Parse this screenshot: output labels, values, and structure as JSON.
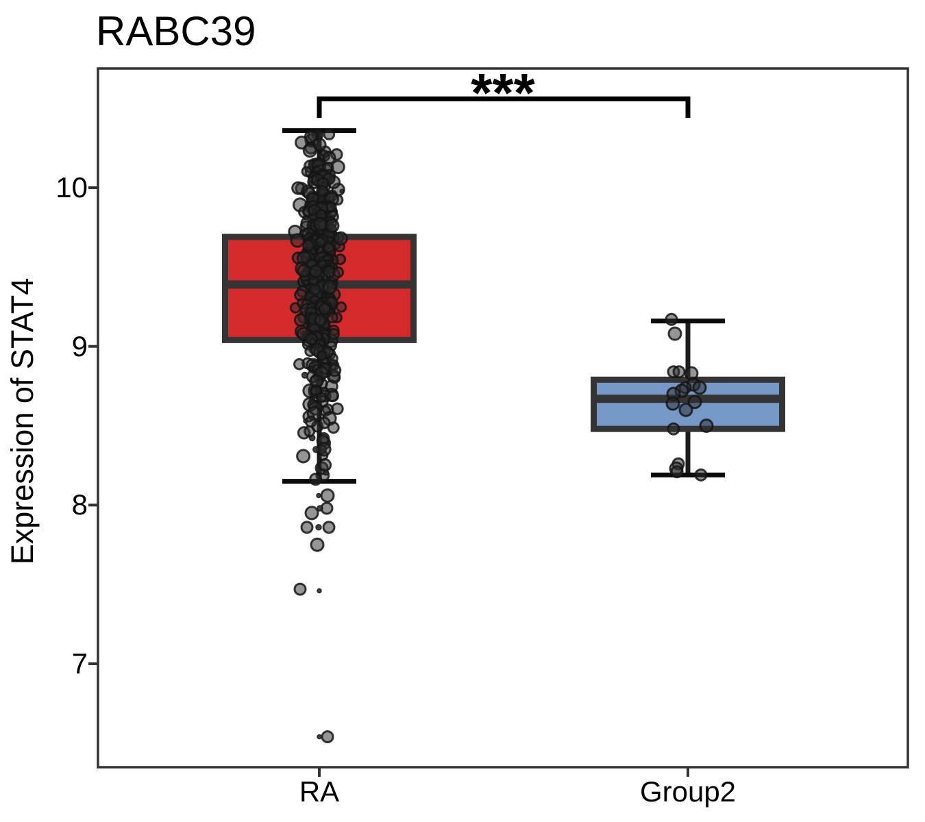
{
  "chart_data": {
    "type": "box",
    "title": "RABC39",
    "ylabel": "Expression of STAT4",
    "xlabel": "",
    "categories": [
      "RA",
      "Group2"
    ],
    "legend": "none",
    "grid": false,
    "y_axis": {
      "visible_range": [
        6.34,
        10.75
      ],
      "ticks": [
        {
          "value": 10,
          "label": "10"
        },
        {
          "value": 9,
          "label": "9"
        },
        {
          "value": 8,
          "label": "8"
        },
        {
          "value": 7,
          "label": "7"
        }
      ]
    },
    "significance": {
      "label": "***",
      "between": [
        "RA",
        "Group2"
      ],
      "bracket_top_value": 10.56,
      "bracket_drop_value": 10.44
    },
    "colors": {
      "box_border": "#343434",
      "median_line": "#343434",
      "whisker": "#1c1c1c",
      "whisker_cap": "#0a0a0a",
      "bracket": "#000000",
      "point_fill": "#2b2b2b",
      "point_stroke": "#151515",
      "axis": "#333333"
    },
    "groups": [
      {
        "label": "RA",
        "fill_color": "#D32B2B",
        "box_stats": {
          "whisker_low": 8.15,
          "q1": 9.04,
          "median": 9.39,
          "q3": 9.69,
          "whisker_high": 10.36
        },
        "n_points_estimated": 456,
        "jitter_density_bands": [
          [
            10.28,
            10.37,
            6
          ],
          [
            10.18,
            10.28,
            9
          ],
          [
            10.08,
            10.18,
            14
          ],
          [
            9.98,
            10.08,
            20
          ],
          [
            9.88,
            9.98,
            26
          ],
          [
            9.78,
            9.88,
            30
          ],
          [
            9.68,
            9.78,
            33
          ],
          [
            9.58,
            9.68,
            36
          ],
          [
            9.48,
            9.58,
            37
          ],
          [
            9.38,
            9.48,
            36
          ],
          [
            9.28,
            9.38,
            34
          ],
          [
            9.18,
            9.28,
            31
          ],
          [
            9.08,
            9.18,
            28
          ],
          [
            8.98,
            9.08,
            24
          ],
          [
            8.88,
            8.98,
            19
          ],
          [
            8.78,
            8.88,
            15
          ],
          [
            8.68,
            8.78,
            12
          ],
          [
            8.58,
            8.68,
            9
          ],
          [
            8.48,
            8.58,
            8
          ],
          [
            8.38,
            8.48,
            6
          ],
          [
            8.28,
            8.38,
            5
          ],
          [
            8.15,
            8.28,
            5
          ]
        ],
        "outlier_points": [
          [
            8.06,
            -1,
            3
          ],
          [
            8.06,
            12,
            9
          ],
          [
            7.98,
            11,
            8
          ],
          [
            7.98,
            1,
            4
          ],
          [
            7.95,
            -11,
            9
          ],
          [
            7.86,
            -1,
            4
          ],
          [
            7.86,
            14,
            8
          ],
          [
            7.86,
            -18,
            8
          ],
          [
            7.75,
            -3,
            9
          ],
          [
            7.47,
            -28,
            8
          ],
          [
            7.46,
            0,
            3
          ],
          [
            6.54,
            0,
            3
          ],
          [
            6.54,
            12,
            8
          ]
        ]
      },
      {
        "label": "Group2",
        "fill_color": "#7598C6",
        "box_stats": {
          "whisker_low": 8.19,
          "q1": 8.48,
          "median": 8.67,
          "q3": 8.79,
          "whisker_high": 9.16
        },
        "points": [
          [
            9.17,
            -24,
            8
          ],
          [
            9.08,
            -19,
            9
          ],
          [
            8.84,
            -21,
            8
          ],
          [
            8.84,
            -13,
            8
          ],
          [
            8.83,
            5,
            9
          ],
          [
            8.76,
            8,
            9
          ],
          [
            8.74,
            17,
            9
          ],
          [
            8.74,
            -4,
            8
          ],
          [
            8.72,
            -9,
            9
          ],
          [
            8.7,
            -21,
            9
          ],
          [
            8.65,
            10,
            9
          ],
          [
            8.64,
            -22,
            9
          ],
          [
            8.6,
            -3,
            9
          ],
          [
            8.5,
            27,
            9
          ],
          [
            8.48,
            -21,
            8
          ],
          [
            8.26,
            -14,
            8
          ],
          [
            8.23,
            -17,
            9
          ],
          [
            8.21,
            -16,
            8
          ],
          [
            8.19,
            19,
            8
          ]
        ]
      }
    ]
  }
}
